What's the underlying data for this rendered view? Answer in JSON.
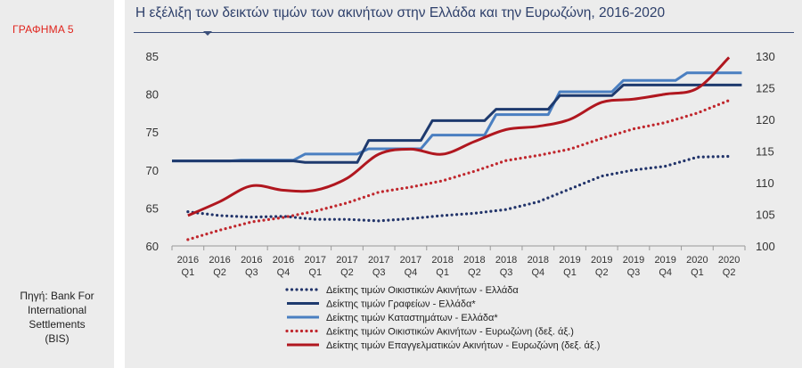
{
  "figure_label": "ΓΡΑΦΗΜΑ 5",
  "source_lines": [
    "Πηγή: Bank For",
    "International",
    "Settlements",
    "(BIS)"
  ],
  "chart_data": {
    "type": "line",
    "title": "Η εξέλιξη των δεικτών τιμών των ακινήτων στην Ελλάδα και την Ευρωζώνη, 2016-2020",
    "x_years": [
      "2016",
      "2016",
      "2016",
      "2016",
      "2017",
      "2017",
      "2017",
      "2017",
      "2018",
      "2018",
      "2018",
      "2018",
      "2019",
      "2019",
      "2019",
      "2019",
      "2020",
      "2020"
    ],
    "x_quarters": [
      "Q1",
      "Q2",
      "Q3",
      "Q4",
      "Q1",
      "Q2",
      "Q3",
      "Q4",
      "Q1",
      "Q2",
      "Q3",
      "Q4",
      "Q1",
      "Q2",
      "Q3",
      "Q4",
      "Q1",
      "Q2"
    ],
    "y_left": {
      "min": 60,
      "max": 85,
      "ticks": [
        60,
        65,
        70,
        75,
        80,
        85
      ]
    },
    "y_right": {
      "min": 100,
      "max": 130,
      "ticks": [
        100,
        105,
        110,
        115,
        120,
        125,
        130
      ]
    },
    "legend_position": "bottom",
    "series": [
      {
        "name": "Δείκτης τιμών Οικιστικών Ακινήτων - Ελλάδα",
        "axis": "left",
        "style": "dotted",
        "color": "#22346a",
        "values": [
          64.5,
          64.0,
          63.8,
          63.9,
          63.5,
          63.5,
          63.3,
          63.6,
          64.0,
          64.3,
          64.8,
          65.8,
          67.5,
          69.2,
          70.0,
          70.5,
          71.7,
          71.8
        ]
      },
      {
        "name": "Δείκτης τιμών Γραφείων - Ελλάδα*",
        "axis": "left",
        "style": "step",
        "color": "#1e3a6e",
        "values": [
          71.2,
          71.2,
          71.2,
          71.2,
          71.0,
          71.0,
          73.9,
          73.9,
          76.5,
          76.5,
          78.0,
          78.0,
          79.8,
          79.8,
          81.2,
          81.2,
          81.2,
          81.2
        ]
      },
      {
        "name": "Δείκτης τιμών Καταστημάτων - Ελλάδα*",
        "axis": "left",
        "style": "step",
        "color": "#4a7fc1",
        "values": [
          71.2,
          71.2,
          71.3,
          71.3,
          72.1,
          72.1,
          72.8,
          72.8,
          74.6,
          74.6,
          77.3,
          77.3,
          80.3,
          80.3,
          81.8,
          81.8,
          82.8,
          82.8
        ]
      },
      {
        "name": "Δείκτης τιμών Οικιστικών Ακινήτων - Ευρωζώνη (δεξ. άξ.)",
        "axis": "right",
        "style": "dotted",
        "color": "#c0272d",
        "values": [
          101.0,
          102.5,
          103.8,
          104.5,
          105.5,
          106.8,
          108.5,
          109.3,
          110.3,
          111.8,
          113.5,
          114.3,
          115.3,
          117.0,
          118.5,
          119.5,
          121.0,
          123.0
        ]
      },
      {
        "name": "Δείκτης τιμών Επαγγελματικών Ακινήτων - Ευρωζώνη (δεξ. άξ.)",
        "axis": "right",
        "style": "solid",
        "color": "#b0171f",
        "values": [
          104.8,
          107.0,
          109.5,
          108.8,
          108.8,
          110.7,
          114.5,
          115.3,
          114.5,
          116.5,
          118.4,
          118.9,
          120.0,
          122.7,
          123.2,
          124.0,
          124.9,
          129.8
        ]
      }
    ]
  }
}
